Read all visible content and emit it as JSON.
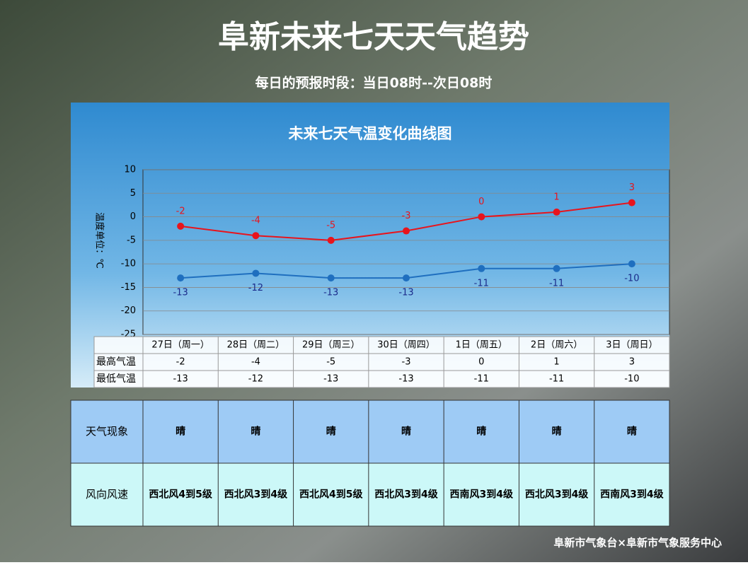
{
  "header": {
    "title": "阜新未来七天天气趋势",
    "subtitle": "每日的预报时段：当日08时--次日08时"
  },
  "chart_data": {
    "type": "line",
    "title": "未来七天气温变化曲线图",
    "y_label": "温度单位：℃",
    "categories": [
      "27日（周一）",
      "28日（周二）",
      "29日（周三）",
      "30日（周四）",
      "1日（周五）",
      "2日（周六）",
      "3日（周日）"
    ],
    "series": [
      {
        "name": "最高气温",
        "color": "#e8141c",
        "label_color": "#e8141c",
        "values": [
          -2,
          -4,
          -5,
          -3,
          0,
          1,
          3
        ]
      },
      {
        "name": "最低气温",
        "color": "#1f6fbf",
        "label_color": "#1a2a8a",
        "values": [
          -13,
          -12,
          -13,
          -13,
          -11,
          -11,
          -10
        ]
      }
    ],
    "ylim": [
      -25,
      10
    ],
    "yticks": [
      -25,
      -20,
      -15,
      -10,
      -5,
      0,
      5,
      10
    ],
    "grid": true
  },
  "weather_table": {
    "rows": [
      {
        "label": "天气现象",
        "color": "#9ecbf5",
        "cells": [
          "晴",
          "晴",
          "晴",
          "晴",
          "晴",
          "晴",
          "晴"
        ]
      },
      {
        "label": "风向风速",
        "color": "#ccf8f8",
        "cells": [
          "西北风4到5级",
          "西北风3到4级",
          "西北风4到5级",
          "西北风3到4级",
          "西南风3到4级",
          "西北风3到4级",
          "西南风3到4级"
        ]
      }
    ]
  },
  "footer": "阜新市气象台×阜新市气象服务中心"
}
